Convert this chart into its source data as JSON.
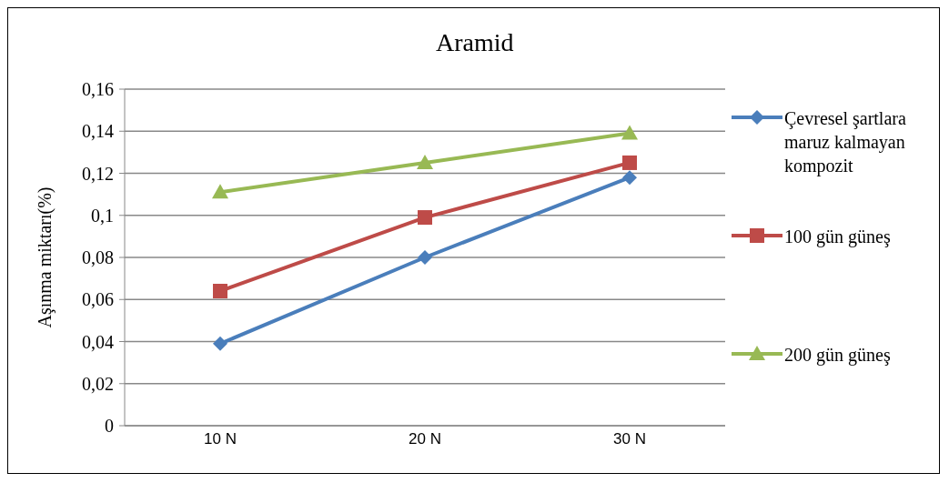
{
  "chart_data": {
    "type": "line",
    "title": "Aramid",
    "ylabel": "Aşınma miktarı(%)",
    "categories": [
      "10 N",
      "20 N",
      "30 N"
    ],
    "series": [
      {
        "name": "Çevresel şartlara maruz kalmayan kompozit",
        "color": "#4a7ebb",
        "marker": "diamond",
        "values": [
          0.039,
          0.08,
          0.118
        ]
      },
      {
        "name": "100 gün güneş",
        "color": "#be4b48",
        "marker": "square",
        "values": [
          0.064,
          0.099,
          0.125
        ]
      },
      {
        "name": "200 gün güneş",
        "color": "#98b954",
        "marker": "triangle",
        "values": [
          0.111,
          0.125,
          0.139
        ]
      }
    ],
    "ylim": [
      0,
      0.16
    ],
    "yticks": [
      0,
      {
        "value": 0.02,
        "label": "0,02"
      },
      {
        "value": 0.04,
        "label": "0,04"
      },
      {
        "value": 0.06,
        "label": "0,06"
      },
      {
        "value": 0.08,
        "label": "0,08"
      },
      {
        "value": 0.1,
        "label": "0,1"
      },
      {
        "value": 0.12,
        "label": "0,12"
      },
      {
        "value": 0.14,
        "label": "0,14"
      },
      {
        "value": 0.16,
        "label": "0,16"
      }
    ],
    "grid": "y",
    "legend": "right",
    "line_style": "solid"
  }
}
